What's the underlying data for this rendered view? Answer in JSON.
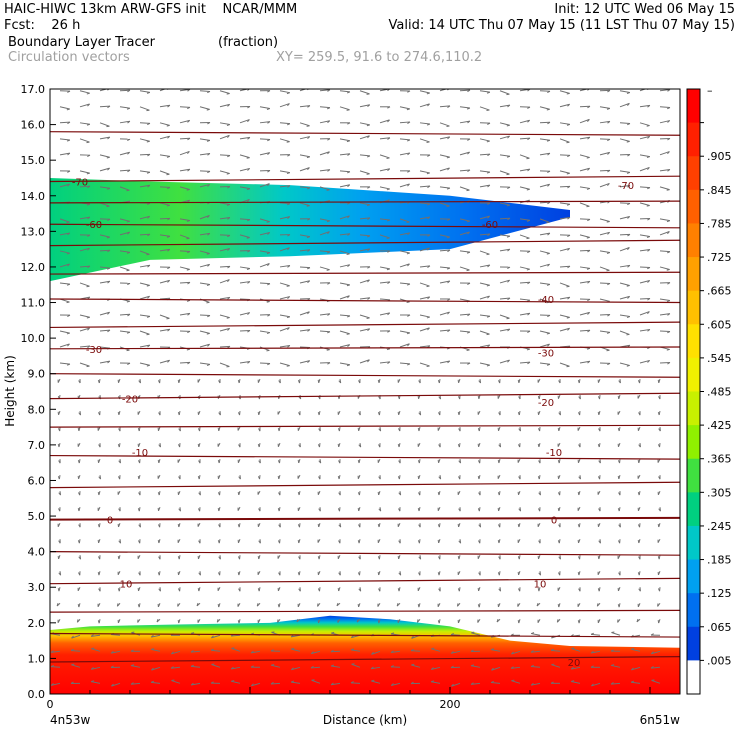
{
  "header": {
    "line1_left": "HAIC-HIWC 13km ARW-GFS init    NCAR/MMM",
    "line1_right": "Init: 12 UTC Wed 06 May 15",
    "fcst_label": "Fcst:    26 h",
    "valid": "Valid: 14 UTC Thu 07 May 15 (11 LST Thu 07 May 15)",
    "field1": "Boundary Layer Tracer",
    "field1_units": "(fraction)",
    "field2": "Circulation vectors",
    "xy_info": "XY= 259.5, 91.6 to 274.6,110.2"
  },
  "chart_data": {
    "type": "heatmap",
    "xlabel": "Distance (km)",
    "ylabel": "Height (km)",
    "xlim": [
      0,
      315
    ],
    "ylim": [
      0,
      17
    ],
    "x_ticks": [
      "0",
      "200"
    ],
    "x_tick_values": [
      0,
      200
    ],
    "x_endpoints": [
      "4n53w",
      "6n51w"
    ],
    "y_ticks": [
      "0.0",
      "1.0",
      "2.0",
      "3.0",
      "4.0",
      "5.0",
      "6.0",
      "7.0",
      "8.0",
      "9.0",
      "10.0",
      "11.0",
      "12.0",
      "13.0",
      "14.0",
      "15.0",
      "16.0",
      "17.0"
    ],
    "colorbar": {
      "labels": [
        "–",
        ".905",
        ".845",
        ".785",
        ".725",
        ".665",
        ".605",
        ".545",
        ".485",
        ".425",
        ".365",
        ".305",
        ".245",
        ".185",
        ".125",
        ".065",
        ".005"
      ],
      "colors": [
        "#ff0000",
        "#ff2000",
        "#ff4000",
        "#ff6000",
        "#ff8000",
        "#ffa000",
        "#ffc000",
        "#ffe000",
        "#f0f000",
        "#c8f000",
        "#90f000",
        "#40e040",
        "#00d080",
        "#00c8c8",
        "#00a0f0",
        "#0070f0",
        "#0040e0",
        "#ffffff"
      ]
    },
    "tracer_layers": [
      {
        "name": "boundary_layer",
        "top_km": [
          [
            0,
            1.8
          ],
          [
            20,
            1.9
          ],
          [
            60,
            1.95
          ],
          [
            110,
            2.0
          ],
          [
            140,
            2.2
          ],
          [
            170,
            2.1
          ],
          [
            200,
            1.9
          ],
          [
            230,
            1.5
          ],
          [
            260,
            1.35
          ],
          [
            315,
            1.3
          ]
        ],
        "max_fraction": 0.95
      },
      {
        "name": "upper_plume",
        "base_km": [
          [
            0,
            11.6
          ],
          [
            50,
            12.2
          ],
          [
            120,
            12.3
          ],
          [
            200,
            12.5
          ],
          [
            260,
            13.4
          ]
        ],
        "top_km": [
          [
            0,
            14.5
          ],
          [
            50,
            14.4
          ],
          [
            120,
            14.3
          ],
          [
            200,
            14.0
          ],
          [
            260,
            13.6
          ]
        ],
        "max_fraction": 0.25
      }
    ],
    "contour_labels": [
      {
        "text": "-70",
        "x": 15,
        "y": 14.4
      },
      {
        "text": "-70",
        "x": 288,
        "y": 14.3
      },
      {
        "text": "-60",
        "x": 22,
        "y": 13.2
      },
      {
        "text": "-60",
        "x": 220,
        "y": 13.2
      },
      {
        "text": "-40",
        "x": 248,
        "y": 11.1
      },
      {
        "text": "-30",
        "x": 22,
        "y": 9.7
      },
      {
        "text": "-30",
        "x": 248,
        "y": 9.6
      },
      {
        "text": "-20",
        "x": 40,
        "y": 8.3
      },
      {
        "text": "-20",
        "x": 248,
        "y": 8.2
      },
      {
        "text": "-10",
        "x": 45,
        "y": 6.8
      },
      {
        "text": "-10",
        "x": 252,
        "y": 6.8
      },
      {
        "text": "0",
        "x": 30,
        "y": 4.9
      },
      {
        "text": "0",
        "x": 252,
        "y": 4.9
      },
      {
        "text": "10",
        "x": 38,
        "y": 3.1
      },
      {
        "text": "10",
        "x": 245,
        "y": 3.1
      },
      {
        "text": "20",
        "x": 262,
        "y": 0.9
      }
    ],
    "isotherm_heights_km": [
      0.9,
      1.7,
      2.3,
      3.1,
      4.0,
      4.9,
      5.8,
      6.7,
      7.5,
      8.3,
      9.0,
      9.7,
      10.3,
      11.1,
      11.8,
      12.6,
      13.2,
      13.8,
      14.4,
      15.8
    ]
  }
}
